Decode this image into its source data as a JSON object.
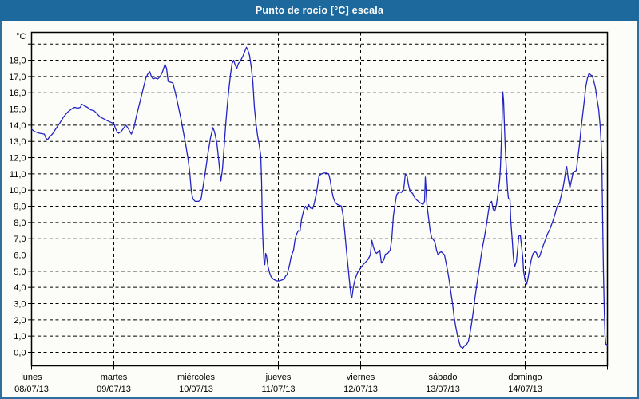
{
  "window": {
    "title": "Punto de rocío [°C] escala"
  },
  "chart_data": {
    "type": "line",
    "title": "Punto de rocío [°C] escala",
    "unit_label": "°C",
    "line_color": "#2323c3",
    "grid_color": "#000000",
    "titlebar_color": "#1d689c",
    "legend_position": "none",
    "grid": "dashed",
    "y_axis": {
      "min": 0,
      "max_gridline": 19,
      "step": 1,
      "tick_labels": [
        "0,0",
        "1,0",
        "2,0",
        "3,0",
        "4,0",
        "5,0",
        "6,0",
        "7,0",
        "8,0",
        "9,0",
        "10,0",
        "11,0",
        "12,0",
        "13,0",
        "14,0",
        "15,0",
        "16,0",
        "17,0",
        "18,0"
      ]
    },
    "x_axis": {
      "span_days": 7,
      "days": [
        {
          "weekday": "lunes",
          "date": "08/07/13"
        },
        {
          "weekday": "martes",
          "date": "09/07/13"
        },
        {
          "weekday": "miércoles",
          "date": "10/07/13"
        },
        {
          "weekday": "jueves",
          "date": "11/07/13"
        },
        {
          "weekday": "viernes",
          "date": "12/07/13"
        },
        {
          "weekday": "sábado",
          "date": "13/07/13"
        },
        {
          "weekday": "domingo",
          "date": "14/07/13"
        }
      ]
    },
    "points": [
      [
        0,
        13.75
      ],
      [
        0.039,
        13.6
      ],
      [
        0.097,
        13.5
      ],
      [
        0.155,
        13.45
      ],
      [
        0.175,
        13.2
      ],
      [
        0.194,
        13.1
      ],
      [
        0.214,
        13.25
      ],
      [
        0.252,
        13.45
      ],
      [
        0.291,
        13.75
      ],
      [
        0.34,
        14.1
      ],
      [
        0.388,
        14.5
      ],
      [
        0.437,
        14.8
      ],
      [
        0.485,
        15
      ],
      [
        0.524,
        15.1
      ],
      [
        0.563,
        15.05
      ],
      [
        0.592,
        15.1
      ],
      [
        0.612,
        15.3
      ],
      [
        0.641,
        15.2
      ],
      [
        0.68,
        15.1
      ],
      [
        0.718,
        14.95
      ],
      [
        0.757,
        14.9
      ],
      [
        0.796,
        14.7
      ],
      [
        0.835,
        14.5
      ],
      [
        0.874,
        14.4
      ],
      [
        0.913,
        14.3
      ],
      [
        0.951,
        14.2
      ],
      [
        1,
        14.1
      ],
      [
        1.019,
        13.8
      ],
      [
        1.039,
        13.6
      ],
      [
        1.058,
        13.5
      ],
      [
        1.087,
        13.6
      ],
      [
        1.117,
        13.8
      ],
      [
        1.146,
        14
      ],
      [
        1.175,
        13.8
      ],
      [
        1.194,
        13.6
      ],
      [
        1.214,
        13.45
      ],
      [
        1.243,
        13.8
      ],
      [
        1.272,
        14.5
      ],
      [
        1.301,
        15.1
      ],
      [
        1.33,
        15.7
      ],
      [
        1.359,
        16.3
      ],
      [
        1.388,
        16.9
      ],
      [
        1.417,
        17.2
      ],
      [
        1.437,
        17.3
      ],
      [
        1.456,
        17
      ],
      [
        1.476,
        16.85
      ],
      [
        1.505,
        16.9
      ],
      [
        1.534,
        16.85
      ],
      [
        1.563,
        17
      ],
      [
        1.592,
        17.3
      ],
      [
        1.621,
        17.75
      ],
      [
        1.641,
        17.5
      ],
      [
        1.66,
        16.7
      ],
      [
        1.689,
        16.65
      ],
      [
        1.718,
        16.6
      ],
      [
        1.738,
        16.2
      ],
      [
        1.757,
        15.8
      ],
      [
        1.786,
        15.1
      ],
      [
        1.816,
        14.4
      ],
      [
        1.845,
        13.6
      ],
      [
        1.874,
        12.8
      ],
      [
        1.903,
        11.9
      ],
      [
        1.922,
        11.1
      ],
      [
        1.942,
        9.95
      ],
      [
        1.961,
        9.45
      ],
      [
        1.99,
        9.3
      ],
      [
        2.029,
        9.3
      ],
      [
        2.058,
        9.4
      ],
      [
        2.087,
        10.3
      ],
      [
        2.117,
        11.3
      ],
      [
        2.146,
        12.3
      ],
      [
        2.175,
        13.2
      ],
      [
        2.204,
        13.85
      ],
      [
        2.223,
        13.6
      ],
      [
        2.252,
        12.9
      ],
      [
        2.272,
        12
      ],
      [
        2.291,
        11
      ],
      [
        2.301,
        10.55
      ],
      [
        2.32,
        11.3
      ],
      [
        2.34,
        12.6
      ],
      [
        2.359,
        14
      ],
      [
        2.379,
        15.2
      ],
      [
        2.398,
        16.2
      ],
      [
        2.417,
        17.1
      ],
      [
        2.437,
        17.8
      ],
      [
        2.456,
        18
      ],
      [
        2.476,
        17.7
      ],
      [
        2.495,
        17.5
      ],
      [
        2.515,
        17.8
      ],
      [
        2.534,
        17.9
      ],
      [
        2.553,
        18.1
      ],
      [
        2.573,
        18.3
      ],
      [
        2.592,
        18.55
      ],
      [
        2.612,
        18.8
      ],
      [
        2.631,
        18.6
      ],
      [
        2.65,
        18.3
      ],
      [
        2.67,
        17.6
      ],
      [
        2.689,
        16.7
      ],
      [
        2.709,
        15.1
      ],
      [
        2.728,
        14.1
      ],
      [
        2.748,
        13.35
      ],
      [
        2.767,
        12.8
      ],
      [
        2.786,
        12.1
      ],
      [
        2.796,
        10.5
      ],
      [
        2.806,
        7.8
      ],
      [
        2.816,
        6.5
      ],
      [
        2.825,
        5.65
      ],
      [
        2.835,
        5.4
      ],
      [
        2.845,
        6.1
      ],
      [
        2.854,
        6
      ],
      [
        2.874,
        5.3
      ],
      [
        2.893,
        4.9
      ],
      [
        2.913,
        4.65
      ],
      [
        2.942,
        4.5
      ],
      [
        2.981,
        4.4
      ],
      [
        3.01,
        4.4
      ],
      [
        3.039,
        4.45
      ],
      [
        3.068,
        4.5
      ],
      [
        3.087,
        4.7
      ],
      [
        3.107,
        4.8
      ],
      [
        3.136,
        5.4
      ],
      [
        3.155,
        5.9
      ],
      [
        3.184,
        6.3
      ],
      [
        3.204,
        7
      ],
      [
        3.223,
        7.3
      ],
      [
        3.243,
        7.5
      ],
      [
        3.262,
        7.45
      ],
      [
        3.282,
        8.2
      ],
      [
        3.311,
        8.8
      ],
      [
        3.33,
        9
      ],
      [
        3.35,
        8.8
      ],
      [
        3.369,
        9.1
      ],
      [
        3.388,
        8.9
      ],
      [
        3.417,
        8.85
      ],
      [
        3.437,
        9.2
      ],
      [
        3.466,
        9.9
      ],
      [
        3.495,
        10.9
      ],
      [
        3.524,
        11
      ],
      [
        3.553,
        11.05
      ],
      [
        3.583,
        11.05
      ],
      [
        3.612,
        11
      ],
      [
        3.631,
        10.6
      ],
      [
        3.65,
        9.95
      ],
      [
        3.67,
        9.5
      ],
      [
        3.689,
        9.25
      ],
      [
        3.718,
        9.1
      ],
      [
        3.748,
        9.05
      ],
      [
        3.767,
        9
      ],
      [
        3.786,
        8.45
      ],
      [
        3.806,
        7.5
      ],
      [
        3.825,
        6.4
      ],
      [
        3.845,
        5.4
      ],
      [
        3.864,
        4.4
      ],
      [
        3.883,
        3.5
      ],
      [
        3.893,
        3.35
      ],
      [
        3.913,
        4.05
      ],
      [
        3.932,
        4.5
      ],
      [
        3.961,
        4.9
      ],
      [
        4,
        5.2
      ],
      [
        4.029,
        5.4
      ],
      [
        4.058,
        5.55
      ],
      [
        4.087,
        5.7
      ],
      [
        4.117,
        6
      ],
      [
        4.136,
        6.9
      ],
      [
        4.155,
        6.5
      ],
      [
        4.175,
        6.2
      ],
      [
        4.194,
        6.1
      ],
      [
        4.214,
        6.2
      ],
      [
        4.233,
        6.3
      ],
      [
        4.252,
        5.5
      ],
      [
        4.282,
        5.7
      ],
      [
        4.301,
        6.05
      ],
      [
        4.33,
        6.1
      ],
      [
        4.359,
        6.3
      ],
      [
        4.379,
        7
      ],
      [
        4.398,
        8.4
      ],
      [
        4.417,
        9.1
      ],
      [
        4.437,
        9.7
      ],
      [
        4.466,
        9.9
      ],
      [
        4.495,
        9.85
      ],
      [
        4.524,
        10.1
      ],
      [
        4.544,
        11
      ],
      [
        4.563,
        10.9
      ],
      [
        4.583,
        10.3
      ],
      [
        4.602,
        9.9
      ],
      [
        4.631,
        9.8
      ],
      [
        4.66,
        9.5
      ],
      [
        4.689,
        9.35
      ],
      [
        4.728,
        9.2
      ],
      [
        4.757,
        9.1
      ],
      [
        4.777,
        9.3
      ],
      [
        4.786,
        10.8
      ],
      [
        4.796,
        10
      ],
      [
        4.806,
        9.1
      ],
      [
        4.825,
        8.3
      ],
      [
        4.845,
        7.5
      ],
      [
        4.864,
        7.05
      ],
      [
        4.883,
        6.95
      ],
      [
        4.903,
        6.8
      ],
      [
        4.922,
        6.3
      ],
      [
        4.942,
        6
      ],
      [
        4.961,
        6.15
      ],
      [
        4.981,
        6.2
      ],
      [
        5,
        6.1
      ],
      [
        5.019,
        6
      ],
      [
        5.039,
        5.5
      ],
      [
        5.058,
        5
      ],
      [
        5.078,
        4.4
      ],
      [
        5.097,
        3.7
      ],
      [
        5.117,
        3
      ],
      [
        5.136,
        2.2
      ],
      [
        5.155,
        1.6
      ],
      [
        5.175,
        1.1
      ],
      [
        5.194,
        0.7
      ],
      [
        5.214,
        0.35
      ],
      [
        5.243,
        0.25
      ],
      [
        5.262,
        0.4
      ],
      [
        5.291,
        0.5
      ],
      [
        5.311,
        0.7
      ],
      [
        5.33,
        1.2
      ],
      [
        5.35,
        1.8
      ],
      [
        5.369,
        2.5
      ],
      [
        5.388,
        3.3
      ],
      [
        5.408,
        4
      ],
      [
        5.427,
        4.7
      ],
      [
        5.447,
        5.3
      ],
      [
        5.466,
        6
      ],
      [
        5.485,
        6.6
      ],
      [
        5.505,
        7.1
      ],
      [
        5.534,
        8
      ],
      [
        5.553,
        8.7
      ],
      [
        5.573,
        9.2
      ],
      [
        5.592,
        9.3
      ],
      [
        5.612,
        8.8
      ],
      [
        5.631,
        8.7
      ],
      [
        5.65,
        9.1
      ],
      [
        5.67,
        9.8
      ],
      [
        5.689,
        10.6
      ],
      [
        5.699,
        11.4
      ],
      [
        5.709,
        12.7
      ],
      [
        5.718,
        14.2
      ],
      [
        5.728,
        16.05
      ],
      [
        5.738,
        15.5
      ],
      [
        5.748,
        14
      ],
      [
        5.757,
        12.7
      ],
      [
        5.767,
        11.7
      ],
      [
        5.777,
        10.8
      ],
      [
        5.786,
        10
      ],
      [
        5.796,
        9.5
      ],
      [
        5.816,
        9.4
      ],
      [
        5.825,
        8.1
      ],
      [
        5.845,
        6.8
      ],
      [
        5.854,
        6
      ],
      [
        5.864,
        5.5
      ],
      [
        5.874,
        5.3
      ],
      [
        5.893,
        5.6
      ],
      [
        5.913,
        6.6
      ],
      [
        5.922,
        7.15
      ],
      [
        5.942,
        7.2
      ],
      [
        5.961,
        6.3
      ],
      [
        5.971,
        5.85
      ],
      [
        5.981,
        5
      ],
      [
        6,
        4.4
      ],
      [
        6.019,
        4.2
      ],
      [
        6.039,
        4.7
      ],
      [
        6.058,
        5.3
      ],
      [
        6.078,
        5.8
      ],
      [
        6.097,
        6.1
      ],
      [
        6.117,
        6.2
      ],
      [
        6.136,
        6.15
      ],
      [
        6.155,
        5.85
      ],
      [
        6.175,
        5.9
      ],
      [
        6.194,
        6.2
      ],
      [
        6.214,
        6.5
      ],
      [
        6.243,
        6.9
      ],
      [
        6.272,
        7.3
      ],
      [
        6.301,
        7.6
      ],
      [
        6.33,
        8
      ],
      [
        6.359,
        8.45
      ],
      [
        6.388,
        9
      ],
      [
        6.417,
        9.2
      ],
      [
        6.437,
        9.65
      ],
      [
        6.456,
        10.05
      ],
      [
        6.476,
        10.6
      ],
      [
        6.495,
        11.3
      ],
      [
        6.505,
        11.45
      ],
      [
        6.524,
        10.7
      ],
      [
        6.544,
        10.15
      ],
      [
        6.563,
        10.6
      ],
      [
        6.583,
        11.1
      ],
      [
        6.602,
        11.15
      ],
      [
        6.621,
        11.2
      ],
      [
        6.641,
        12
      ],
      [
        6.66,
        12.8
      ],
      [
        6.68,
        13.8
      ],
      [
        6.699,
        14.65
      ],
      [
        6.718,
        15.5
      ],
      [
        6.738,
        16.4
      ],
      [
        6.757,
        16.9
      ],
      [
        6.777,
        17.2
      ],
      [
        6.796,
        17.1
      ],
      [
        6.816,
        17.05
      ],
      [
        6.835,
        16.7
      ],
      [
        6.854,
        16.3
      ],
      [
        6.874,
        15.6
      ],
      [
        6.893,
        15
      ],
      [
        6.913,
        13.9
      ],
      [
        6.922,
        13
      ],
      [
        6.932,
        11.8
      ],
      [
        6.942,
        8.2
      ],
      [
        6.951,
        5
      ],
      [
        6.961,
        2.7
      ],
      [
        6.971,
        1
      ],
      [
        6.981,
        0.5
      ],
      [
        7,
        0.45
      ]
    ]
  }
}
